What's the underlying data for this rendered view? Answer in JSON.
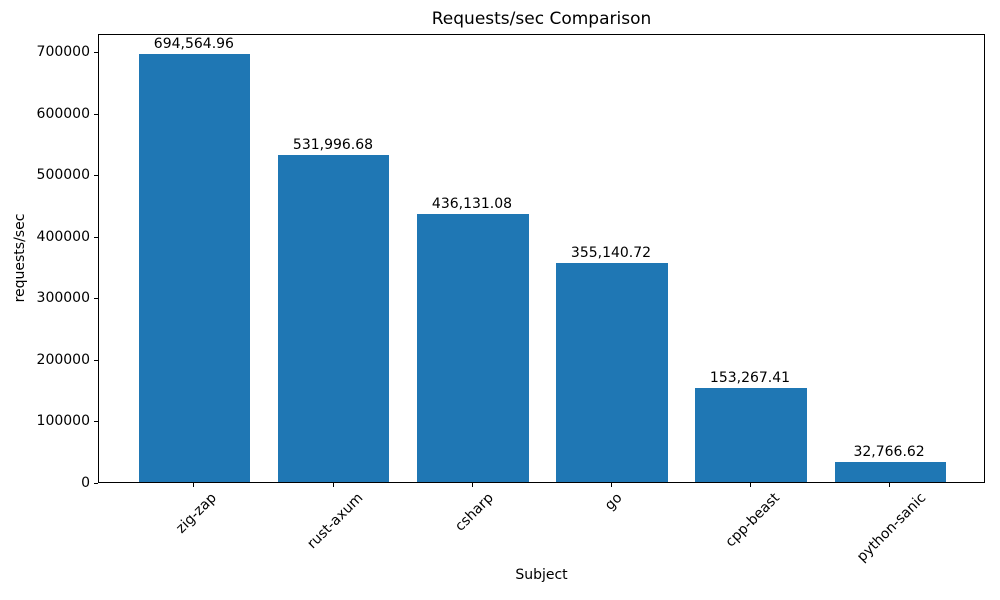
{
  "chart_data": {
    "type": "bar",
    "title": "Requests/sec Comparison",
    "xlabel": "Subject",
    "ylabel": "requests/sec",
    "categories": [
      "zig-zap",
      "rust-axum",
      "csharp",
      "go",
      "cpp-beast",
      "python-sanic"
    ],
    "values": [
      694564.96,
      531996.68,
      436131.08,
      355140.72,
      153267.41,
      32766.62
    ],
    "value_labels": [
      "694,564.96",
      "531,996.68",
      "436,131.08",
      "355,140.72",
      "153,267.41",
      "32,766.62"
    ],
    "yticks": [
      0,
      100000,
      200000,
      300000,
      400000,
      500000,
      600000,
      700000
    ],
    "ylim": [
      0,
      729293
    ],
    "bar_color": "#1f77b4",
    "grid": false,
    "legend": null,
    "x_tick_rotation_deg": 45
  }
}
